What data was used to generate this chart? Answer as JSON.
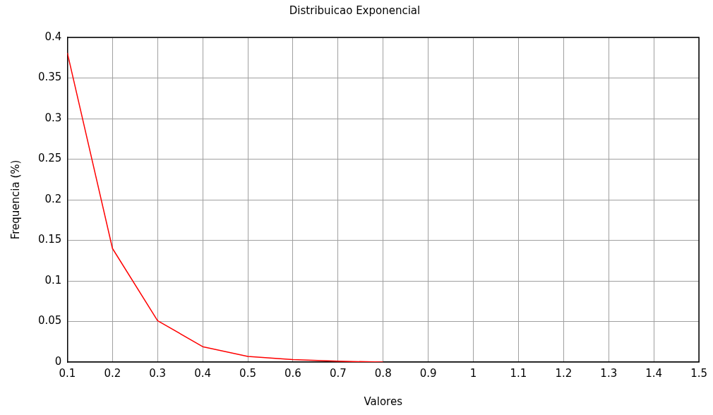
{
  "chart_data": {
    "type": "line",
    "title": "Distribuicao Exponencial",
    "xlabel": "Valores",
    "ylabel": "Frequencia (%)",
    "x": [
      0.1,
      0.2,
      0.3,
      0.4,
      0.5,
      0.6,
      0.7,
      0.8
    ],
    "series": [
      {
        "color": "#ff0000",
        "values": [
          0.381,
          0.14,
          0.051,
          0.019,
          0.007,
          0.003,
          0.001,
          0
        ]
      }
    ],
    "xlim": [
      0.1,
      1.5
    ],
    "xticks": [
      0.1,
      0.2,
      0.3,
      0.4,
      0.5,
      0.6,
      0.7,
      0.8,
      0.9,
      1,
      1.1,
      1.2,
      1.3,
      1.4,
      1.5
    ],
    "ylim": [
      0,
      0.4
    ],
    "yticks": [
      0,
      0.05,
      0.1,
      0.15,
      0.2,
      0.25,
      0.3,
      0.35,
      0.4
    ],
    "grid": true,
    "legend": false,
    "marker": "none",
    "line_style": "solid"
  }
}
